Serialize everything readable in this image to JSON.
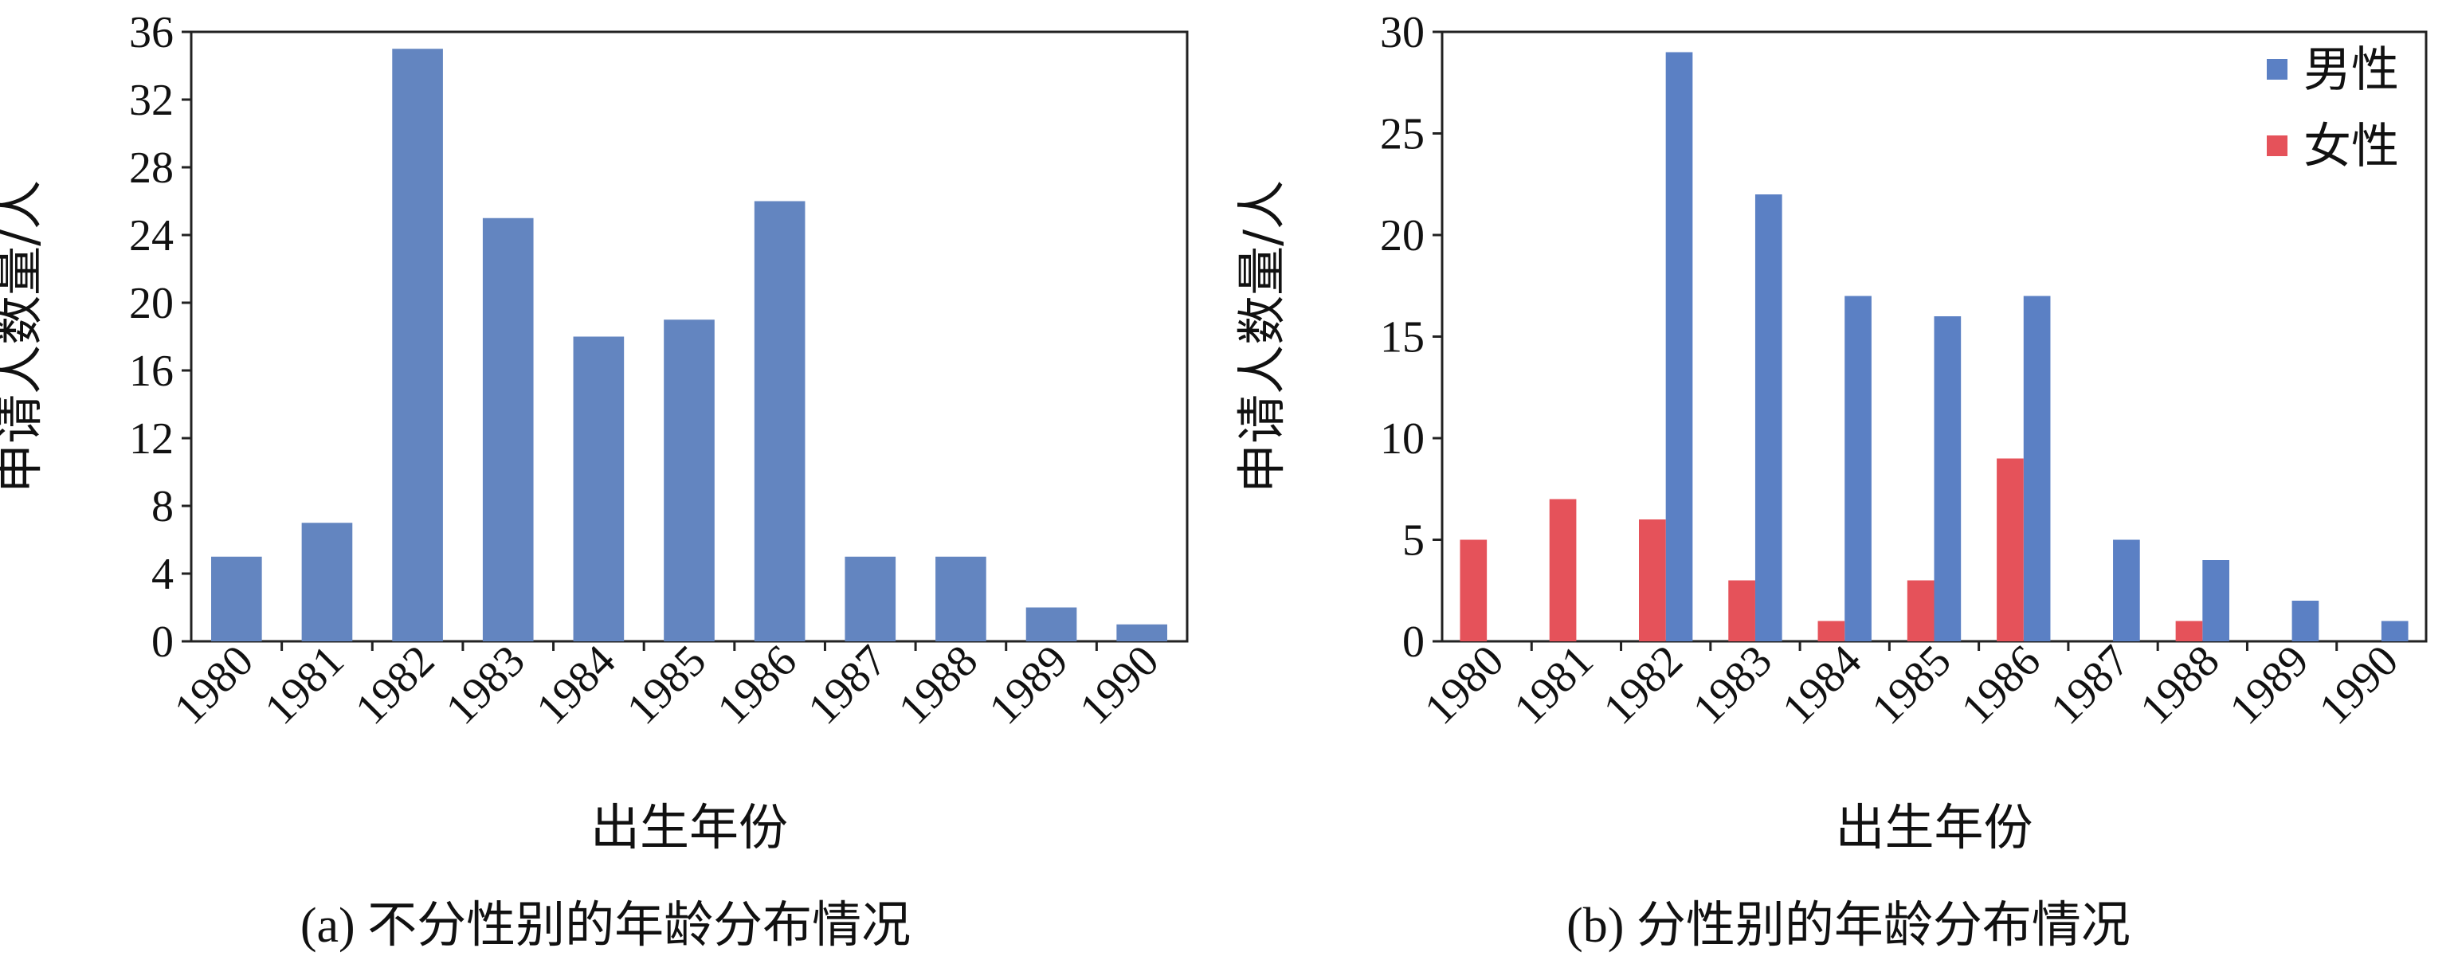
{
  "chart_data": [
    {
      "type": "bar",
      "categories": [
        "1980",
        "1981",
        "1982",
        "1983",
        "1984",
        "1985",
        "1986",
        "1987",
        "1988",
        "1989",
        "1990"
      ],
      "values": [
        5,
        7,
        35,
        25,
        18,
        19,
        26,
        5,
        5,
        2,
        1
      ],
      "ylim": [
        0,
        36
      ],
      "yticks": [
        0,
        4,
        8,
        12,
        16,
        20,
        24,
        28,
        32,
        36
      ],
      "xlabel": "出生年份",
      "ylabel": "申请人数量/人",
      "caption": "(a) 不分性别的年龄分布情况",
      "color": "#6385c0",
      "grid": false
    },
    {
      "type": "bar",
      "categories": [
        "1980",
        "1981",
        "1982",
        "1983",
        "1984",
        "1985",
        "1986",
        "1987",
        "1988",
        "1989",
        "1990"
      ],
      "series": [
        {
          "name": "男性",
          "color": "#5b80c4",
          "values": [
            0,
            0,
            29,
            22,
            17,
            16,
            17,
            5,
            4,
            2,
            1
          ]
        },
        {
          "name": "女性",
          "color": "#e5525a",
          "values": [
            5,
            7,
            6,
            3,
            1,
            3,
            9,
            0,
            1,
            0,
            0
          ]
        }
      ],
      "ylim": [
        0,
        30
      ],
      "yticks": [
        0,
        5,
        10,
        15,
        20,
        25,
        30
      ],
      "xlabel": "出生年份",
      "ylabel": "申请人数量/人",
      "caption": "(b) 分性别的年龄分布情况",
      "legend": "top-right",
      "grid": false
    }
  ]
}
